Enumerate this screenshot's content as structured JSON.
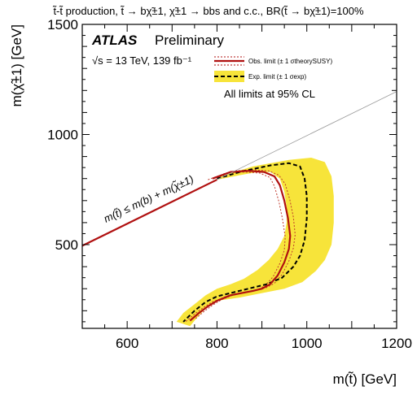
{
  "chart_data": {
    "type": "line",
    "title": "t̃-t̃ production, t̃ → bχ̃±1, χ̃±1 → bbs and c.c., BR(t̃ → bχ̃±1)=100%",
    "xlabel": "m(t̃) [GeV]",
    "ylabel": "m(χ̃±1) [GeV]",
    "xlim": [
      500,
      1200
    ],
    "ylim": [
      120,
      1500
    ],
    "x_ticks": [
      600,
      800,
      1000,
      1200
    ],
    "y_ticks": [
      500,
      1000,
      1500
    ],
    "grid": false,
    "legend_position": "top-right",
    "header": {
      "experiment": "ATLAS",
      "status": "Preliminary",
      "energy": "√s = 13 TeV, 139 fb⁻¹",
      "note": "All limits at 95% CL"
    },
    "kinematic_label": "m(t̃) ≤ m(b) + m(χ̃±1)",
    "legend": [
      {
        "label": "Obs. limit (± 1 σtheorySUSY)",
        "color": "#b01010",
        "style": "solid"
      },
      {
        "label": "Exp. limit (± 1 σexp)",
        "color": "#000000",
        "style": "dashed",
        "band_color": "#f7e43a"
      }
    ],
    "kinematic_line": {
      "x": [
        500,
        1200
      ],
      "y": [
        495,
        1195
      ]
    },
    "series": [
      {
        "name": "Obs. limit",
        "x": [
          790,
          830,
          870,
          905,
          928,
          940,
          950,
          958,
          963,
          960,
          950,
          935,
          918,
          900,
          880,
          855,
          830,
          800,
          780,
          760,
          740
        ],
        "y": [
          800,
          830,
          835,
          830,
          810,
          770,
          700,
          620,
          540,
          480,
          420,
          360,
          320,
          300,
          290,
          280,
          270,
          245,
          220,
          190,
          155
        ]
      },
      {
        "name": "Obs. +1σ",
        "x": [
          800,
          840,
          880,
          915,
          938,
          952,
          962,
          970,
          974,
          970,
          960,
          945,
          928,
          910,
          890,
          865,
          840,
          810,
          790,
          770,
          750
        ],
        "y": [
          805,
          835,
          840,
          835,
          815,
          775,
          705,
          625,
          545,
          485,
          425,
          365,
          325,
          305,
          295,
          285,
          275,
          250,
          225,
          195,
          160
        ]
      },
      {
        "name": "Obs. -1σ",
        "x": [
          780,
          820,
          860,
          895,
          918,
          928,
          938,
          946,
          952,
          950,
          940,
          925,
          908,
          890,
          870,
          845,
          820,
          790,
          770,
          750,
          730
        ],
        "y": [
          795,
          825,
          830,
          825,
          805,
          765,
          695,
          615,
          535,
          475,
          415,
          355,
          315,
          295,
          285,
          275,
          265,
          240,
          215,
          185,
          150
        ]
      },
      {
        "name": "Exp. limit",
        "x": [
          800,
          860,
          920,
          960,
          985,
          995,
          1000,
          1000,
          995,
          985,
          970,
          945,
          910,
          870,
          830,
          800,
          775,
          750,
          725
        ],
        "y": [
          800,
          835,
          860,
          870,
          855,
          800,
          720,
          620,
          520,
          450,
          400,
          350,
          320,
          300,
          280,
          265,
          240,
          200,
          150
        ]
      },
      {
        "name": "Exp. ±1σ band upper",
        "x": [
          800,
          880,
          960,
          1010,
          1040,
          1055,
          1060,
          1060,
          1055,
          1040,
          1020,
          990,
          950,
          900,
          850,
          800,
          780,
          760,
          740
        ],
        "y": [
          805,
          855,
          885,
          895,
          875,
          810,
          720,
          600,
          500,
          430,
          380,
          330,
          300,
          280,
          260,
          245,
          220,
          180,
          130
        ]
      },
      {
        "name": "Exp. ±1σ band lower",
        "x": [
          800,
          850,
          890,
          920,
          940,
          950,
          955,
          955,
          950,
          935,
          915,
          890,
          860,
          830,
          800,
          775,
          750,
          725,
          710
        ],
        "y": [
          795,
          815,
          830,
          830,
          800,
          740,
          670,
          600,
          540,
          480,
          430,
          385,
          345,
          320,
          300,
          270,
          230,
          190,
          150
        ]
      }
    ]
  }
}
